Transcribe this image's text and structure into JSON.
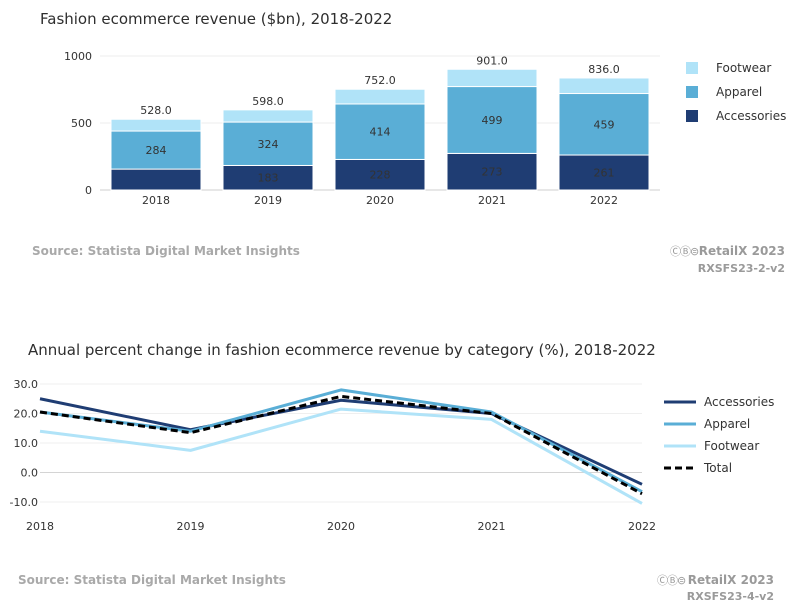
{
  "charts": [
    {
      "title": "Fashion ecommerce revenue ($bn), 2018-2022",
      "source": "Source: Statista Digital Market Insights",
      "brand": "RetailX 2023",
      "code": "RXSFS23-2-v2",
      "license_icons": "ⒸⒷ⊜"
    },
    {
      "title": "Annual percent change in fashion ecommerce revenue by category (%), 2018-2022",
      "source": "Source: Statista Digital Market Insights",
      "brand": "RetailX 2023",
      "code": "RXSFS23-4-v2",
      "license_icons": "ⒸⒷ⊜"
    }
  ],
  "chart_data": [
    {
      "type": "bar",
      "stacked": true,
      "title": "Fashion ecommerce revenue ($bn), 2018-2022",
      "categories": [
        "2018",
        "2019",
        "2020",
        "2021",
        "2022"
      ],
      "series": [
        {
          "name": "Accessories",
          "values": [
            156,
            183,
            228,
            273,
            261
          ],
          "labels": [
            "",
            "183",
            "228",
            "273",
            "261"
          ],
          "color": "#1f3d73"
        },
        {
          "name": "Apparel",
          "values": [
            284,
            324,
            414,
            499,
            459
          ],
          "labels": [
            "284",
            "324",
            "414",
            "499",
            "459"
          ],
          "color": "#5aaed6"
        },
        {
          "name": "Footwear",
          "values": [
            88,
            91,
            110,
            129,
            116
          ],
          "labels": [
            "",
            "",
            "",
            "",
            ""
          ],
          "color": "#b0e3f8"
        }
      ],
      "totals": [
        "528.0",
        "598.0",
        "752.0",
        "901.0",
        "836.0"
      ],
      "yticks": [
        "0",
        "500",
        "1000"
      ],
      "ytick_values": [
        0,
        500,
        1000
      ],
      "ylim": [
        0,
        1000
      ],
      "legend": [
        "Footwear",
        "Apparel",
        "Accessories"
      ],
      "legend_colors": [
        "#b0e3f8",
        "#5aaed6",
        "#1f3d73"
      ],
      "legend_position": "right"
    },
    {
      "type": "line",
      "title": "Annual percent change in fashion ecommerce revenue by category (%), 2018-2022",
      "x": [
        "2018",
        "2019",
        "2020",
        "2021",
        "2022"
      ],
      "series": [
        {
          "name": "Accessories",
          "values": [
            25.0,
            14.5,
            24.5,
            20.0,
            -4.0
          ],
          "color": "#1f3d73",
          "dash": false
        },
        {
          "name": "Apparel",
          "values": [
            20.5,
            14.0,
            28.0,
            20.5,
            -6.5
          ],
          "color": "#5aaed6",
          "dash": false
        },
        {
          "name": "Footwear",
          "values": [
            14.0,
            7.5,
            21.5,
            18.0,
            -10.5
          ],
          "color": "#b0e3f8",
          "dash": false
        },
        {
          "name": "Total",
          "values": [
            20.5,
            13.5,
            25.8,
            20.0,
            -7.2
          ],
          "color": "#000000",
          "dash": true
        }
      ],
      "yticks": [
        "30.0",
        "20.0",
        "10.0",
        "0.0",
        "-10.0"
      ],
      "ytick_values": [
        30,
        20,
        10,
        0,
        -10
      ],
      "ylim": [
        -10,
        30
      ],
      "legend_position": "right"
    }
  ]
}
